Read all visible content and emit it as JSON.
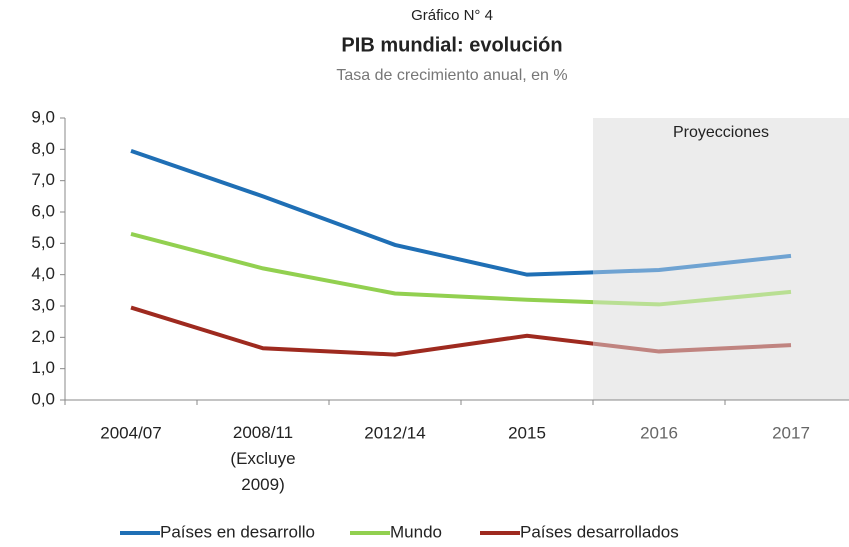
{
  "chart_data": {
    "type": "line",
    "supertitle": "Gráfico N° 4",
    "title": "PIB mundial: evolución",
    "subtitle": "Tasa de crecimiento anual, en %",
    "annotation": "Proyecciones",
    "shaded_from": "2016",
    "categories": [
      "2004/07",
      "2008/11 (Excluye 2009)",
      "2012/14",
      "2015",
      "2016",
      "2017"
    ],
    "series": [
      {
        "name": "Países en desarrollo",
        "color": "#1f6fb5",
        "shaded_color": "#6fa3d2",
        "values": [
          7.95,
          6.5,
          4.95,
          4.0,
          4.15,
          4.6
        ]
      },
      {
        "name": "Mundo",
        "color": "#92d050",
        "shaded_color": "#b9df93",
        "values": [
          5.3,
          4.2,
          3.4,
          3.2,
          3.05,
          3.45
        ]
      },
      {
        "name": "Países desarrollados",
        "color": "#9e2a1f",
        "shaded_color": "#c08480",
        "values": [
          2.95,
          1.65,
          1.45,
          2.05,
          1.55,
          1.75
        ]
      }
    ],
    "ylim": [
      0,
      9
    ],
    "yticks": [
      {
        "value": 0,
        "label": "0,0"
      },
      {
        "value": 1,
        "label": "1,0"
      },
      {
        "value": 2,
        "label": "2,0"
      },
      {
        "value": 3,
        "label": "3,0"
      },
      {
        "value": 4,
        "label": "4,0"
      },
      {
        "value": 5,
        "label": "5,0"
      },
      {
        "value": 6,
        "label": "6,0"
      },
      {
        "value": 7,
        "label": "7,0"
      },
      {
        "value": 8,
        "label": "8,0"
      },
      {
        "value": 9,
        "label": "9,0"
      }
    ],
    "legend": "bottom"
  }
}
